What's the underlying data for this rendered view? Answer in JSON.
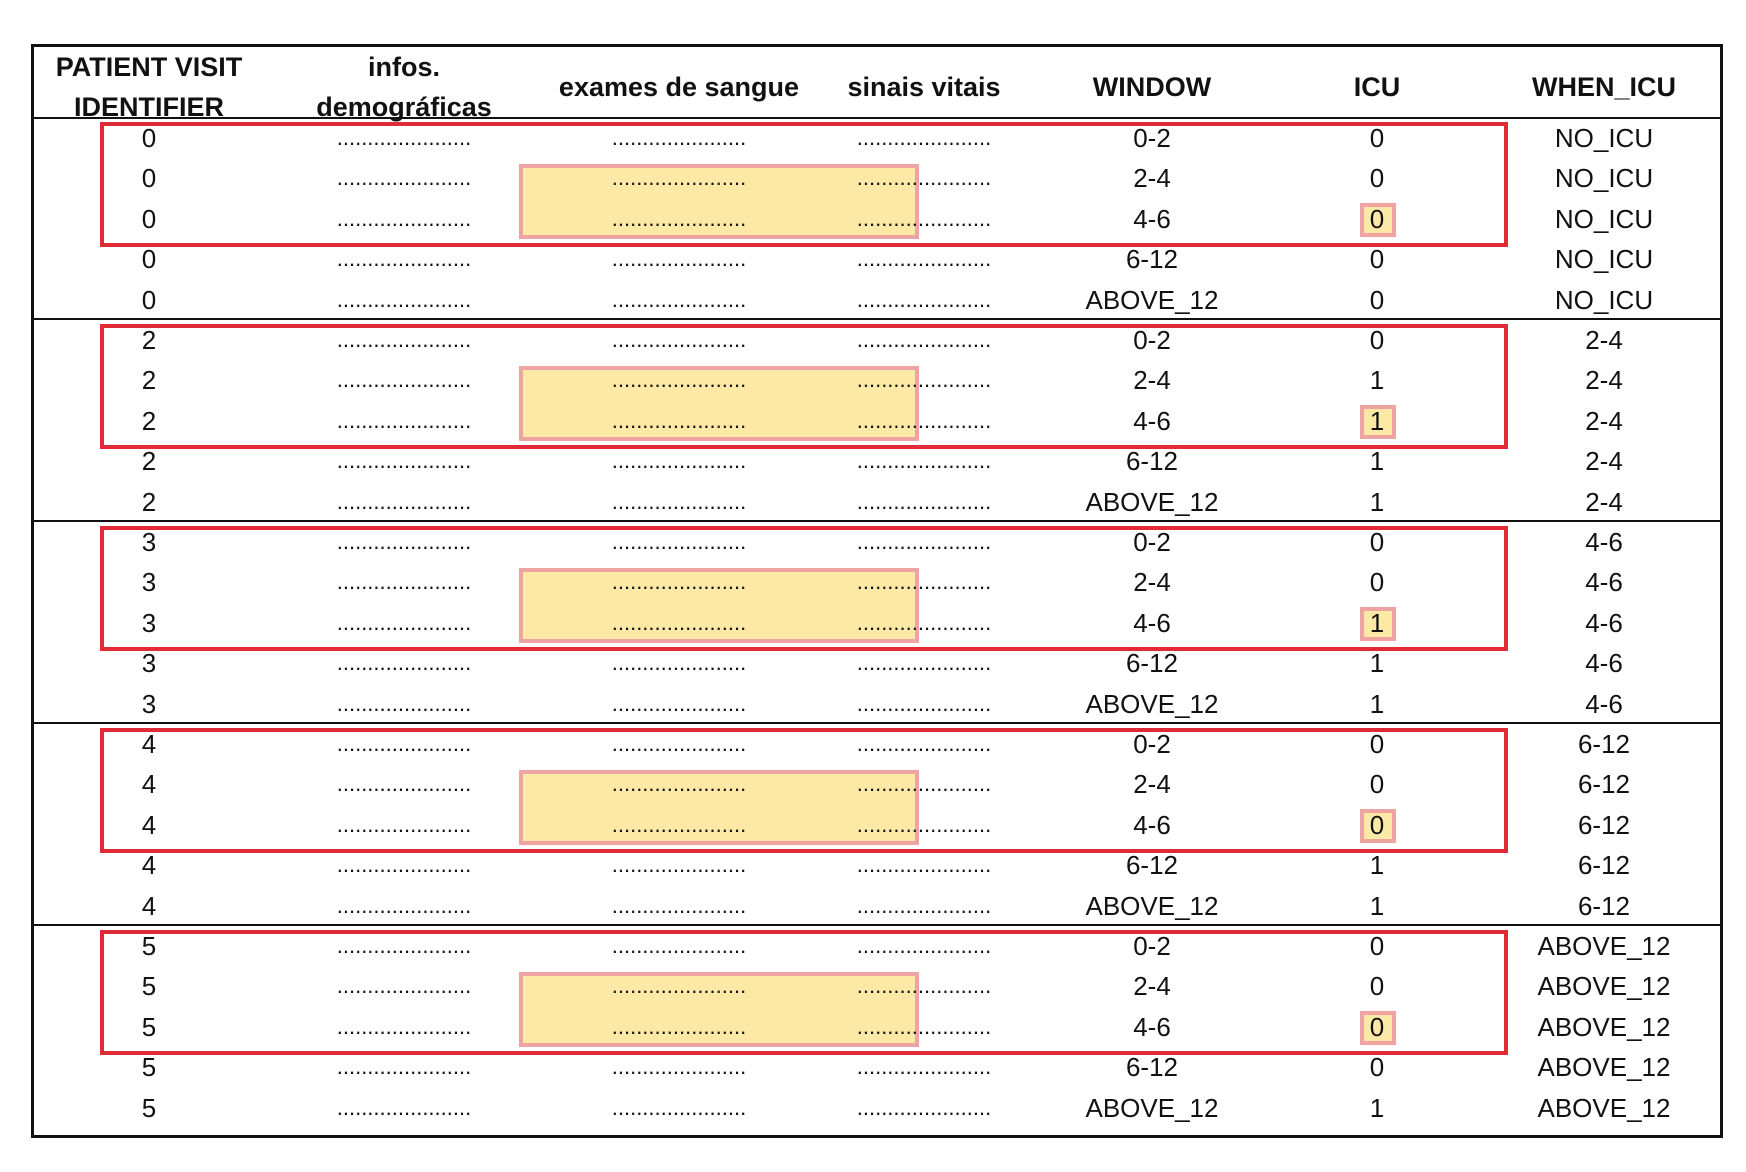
{
  "headers": [
    {
      "key": "id",
      "label_line1": "PATIENT VISIT",
      "label_line2": "IDENTIFIER"
    },
    {
      "key": "demo",
      "label_line1": "infos. demográficas",
      "label_line2": ""
    },
    {
      "key": "blood",
      "label_line1": "exames de sangue",
      "label_line2": ""
    },
    {
      "key": "vitals",
      "label_line1": "sinais vitais",
      "label_line2": ""
    },
    {
      "key": "window",
      "label_line1": "WINDOW",
      "label_line2": ""
    },
    {
      "key": "icu",
      "label_line1": "ICU",
      "label_line2": ""
    },
    {
      "key": "when_icu",
      "label_line1": "WHEN_ICU",
      "label_line2": ""
    }
  ],
  "placeholder": "......................",
  "groups": [
    {
      "rows": [
        {
          "id": "0",
          "window": "0-2",
          "icu": "0",
          "when_icu": "NO_ICU"
        },
        {
          "id": "0",
          "window": "2-4",
          "icu": "0",
          "when_icu": "NO_ICU"
        },
        {
          "id": "0",
          "window": "4-6",
          "icu": "0",
          "when_icu": "NO_ICU"
        },
        {
          "id": "0",
          "window": "6-12",
          "icu": "0",
          "when_icu": "NO_ICU"
        },
        {
          "id": "0",
          "window": "ABOVE_12",
          "icu": "0",
          "when_icu": "NO_ICU"
        }
      ]
    },
    {
      "rows": [
        {
          "id": "2",
          "window": "0-2",
          "icu": "0",
          "when_icu": "2-4"
        },
        {
          "id": "2",
          "window": "2-4",
          "icu": "1",
          "when_icu": "2-4"
        },
        {
          "id": "2",
          "window": "4-6",
          "icu": "1",
          "when_icu": "2-4"
        },
        {
          "id": "2",
          "window": "6-12",
          "icu": "1",
          "when_icu": "2-4"
        },
        {
          "id": "2",
          "window": "ABOVE_12",
          "icu": "1",
          "when_icu": "2-4"
        }
      ]
    },
    {
      "rows": [
        {
          "id": "3",
          "window": "0-2",
          "icu": "0",
          "when_icu": "4-6"
        },
        {
          "id": "3",
          "window": "2-4",
          "icu": "0",
          "when_icu": "4-6"
        },
        {
          "id": "3",
          "window": "4-6",
          "icu": "1",
          "when_icu": "4-6"
        },
        {
          "id": "3",
          "window": "6-12",
          "icu": "1",
          "when_icu": "4-6"
        },
        {
          "id": "3",
          "window": "ABOVE_12",
          "icu": "1",
          "when_icu": "4-6"
        }
      ]
    },
    {
      "rows": [
        {
          "id": "4",
          "window": "0-2",
          "icu": "0",
          "when_icu": "6-12"
        },
        {
          "id": "4",
          "window": "2-4",
          "icu": "0",
          "when_icu": "6-12"
        },
        {
          "id": "4",
          "window": "4-6",
          "icu": "0",
          "when_icu": "6-12"
        },
        {
          "id": "4",
          "window": "6-12",
          "icu": "1",
          "when_icu": "6-12"
        },
        {
          "id": "4",
          "window": "ABOVE_12",
          "icu": "1",
          "when_icu": "6-12"
        }
      ]
    },
    {
      "rows": [
        {
          "id": "5",
          "window": "0-2",
          "icu": "0",
          "when_icu": "ABOVE_12"
        },
        {
          "id": "5",
          "window": "2-4",
          "icu": "0",
          "when_icu": "ABOVE_12"
        },
        {
          "id": "5",
          "window": "4-6",
          "icu": "0",
          "when_icu": "ABOVE_12"
        },
        {
          "id": "5",
          "window": "6-12",
          "icu": "0",
          "when_icu": "ABOVE_12"
        },
        {
          "id": "5",
          "window": "ABOVE_12",
          "icu": "1",
          "when_icu": "ABOVE_12"
        }
      ]
    }
  ],
  "colors": {
    "highlight_fill": "#fde9a6",
    "highlight_border": "#f0a3a3",
    "group_box": "#e02a35"
  }
}
